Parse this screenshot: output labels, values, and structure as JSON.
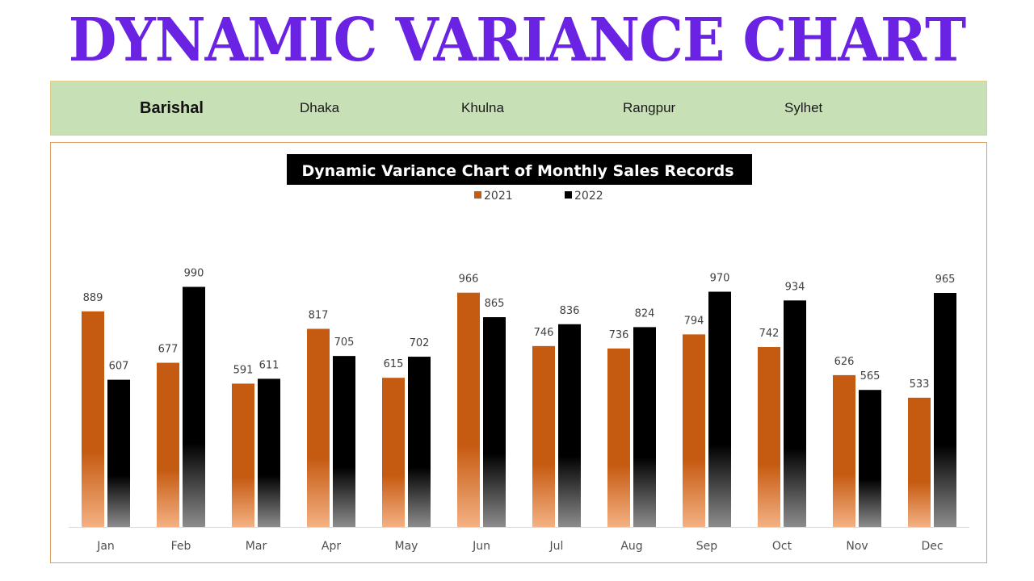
{
  "page": {
    "headline": "DYNAMIC VARIANCE CHART",
    "headline_color": "#6a22e3"
  },
  "slicer": {
    "background": "#c8e0b6",
    "selected": "Barishal",
    "items": [
      {
        "label": "Barishal",
        "active": true
      },
      {
        "label": "Dhaka",
        "active": false
      },
      {
        "label": "Khulna",
        "active": false
      },
      {
        "label": "Rangpur",
        "active": false
      },
      {
        "label": "Sylhet",
        "active": false
      }
    ]
  },
  "chart_data": {
    "type": "bar",
    "title": "Dynamic Variance Chart of Monthly Sales Records",
    "title_background": "#000000",
    "title_color": "#ffffff",
    "legend_position": "top-center",
    "grid": false,
    "categories": [
      "Jan",
      "Feb",
      "Mar",
      "Apr",
      "May",
      "Jun",
      "Jul",
      "Aug",
      "Sep",
      "Oct",
      "Nov",
      "Dec"
    ],
    "ylim": [
      0,
      1000
    ],
    "series": [
      {
        "name": "2021",
        "color": "#c55a11",
        "gradient_bottom": "#f4b183",
        "values": [
          889,
          677,
          591,
          817,
          615,
          966,
          746,
          736,
          794,
          742,
          626,
          533
        ]
      },
      {
        "name": "2022",
        "color": "#000000",
        "gradient_bottom": "#8c8c8c",
        "values": [
          607,
          990,
          611,
          705,
          702,
          865,
          836,
          824,
          970,
          934,
          565,
          965
        ]
      }
    ]
  }
}
